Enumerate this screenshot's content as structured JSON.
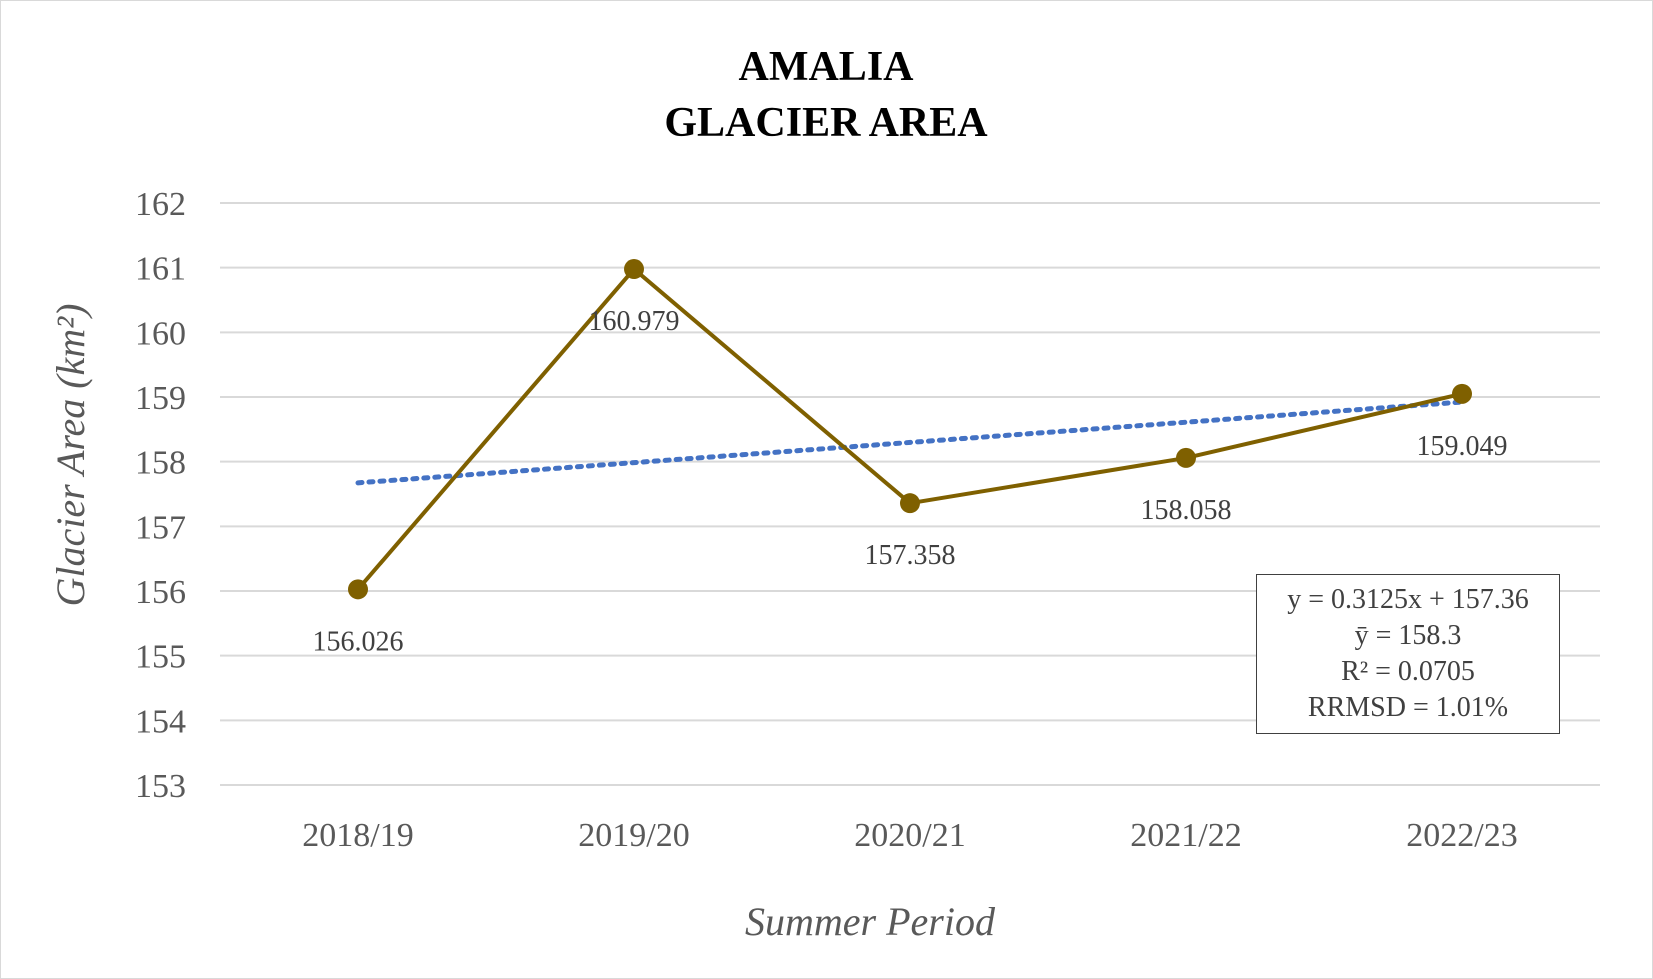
{
  "chart_data": {
    "type": "line",
    "title": [
      "AMALIA",
      "GLACIER AREA"
    ],
    "xlabel": "Summer Period",
    "ylabel": "Glacier Area (km²)",
    "categories": [
      "2018/19",
      "2019/20",
      "2020/21",
      "2021/22",
      "2022/23"
    ],
    "series": [
      {
        "values": [
          156.026,
          160.979,
          157.358,
          158.058,
          159.049
        ],
        "data_labels": [
          "156.026",
          "160.979",
          "157.358",
          "158.058",
          "159.049"
        ],
        "color": "#7f6000",
        "marker": "circle"
      }
    ],
    "trendline": {
      "type": "linear",
      "slope": 0.3125,
      "intercept": 157.36,
      "color": "#4472c4",
      "style": "dotted"
    },
    "ylim": [
      153,
      162
    ],
    "yticks": [
      "153",
      "154",
      "155",
      "156",
      "157",
      "158",
      "159",
      "160",
      "161",
      "162"
    ],
    "grid": true,
    "stats": {
      "equation": "y = 0.3125x + 157.36",
      "mean": "ȳ = 158.3",
      "r2": "R² = 0.0705",
      "rrmsd": "RRMSD = 1.01%"
    }
  }
}
